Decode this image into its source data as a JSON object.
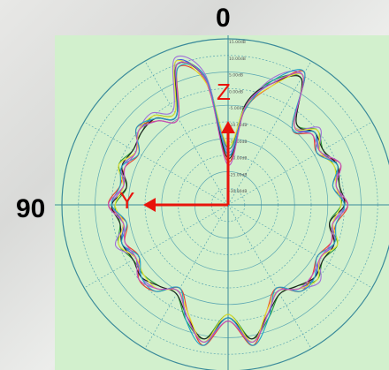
{
  "chart_data": {
    "type": "polar-line",
    "angle_labels": {
      "top": "0",
      "left": "90"
    },
    "radial_tick_labels": [
      "15.00dB",
      "10.00dB",
      "5.00dB",
      "0.00dB",
      "-5.00dB",
      "-10.00dB",
      "-15.00dB",
      "-20.00dB",
      "-25.00dB",
      "-30.00dB"
    ],
    "rlim": [
      -35,
      15
    ],
    "grid": true,
    "axes_overlay": {
      "z_label": "Z",
      "y_label": "Y",
      "color": "#e8140c"
    },
    "series_colors": [
      "#3d5bd6",
      "#2a9a3a",
      "#e8402a",
      "#a070d8",
      "#202020",
      "#e8e030",
      "#20a0c8",
      "#c050c0"
    ],
    "angles_deg": [
      0,
      10,
      20,
      30,
      40,
      50,
      60,
      70,
      80,
      90,
      100,
      110,
      120,
      130,
      140,
      150,
      160,
      170,
      180,
      190,
      200,
      210,
      220,
      230,
      240,
      250,
      260,
      270,
      280,
      290,
      300,
      310,
      320,
      330,
      340,
      350
    ],
    "series": [
      {
        "values": [
          -20,
          3,
          11,
          -4,
          -1,
          0,
          -3,
          -1,
          -3,
          0,
          -3,
          -1,
          -3,
          -1,
          -2,
          -5,
          1,
          7,
          -1,
          7,
          0,
          -5,
          -2,
          -1,
          -3,
          -1,
          -3,
          0,
          -2,
          0,
          -3,
          -1,
          -4,
          10,
          4,
          -5
        ]
      },
      {
        "values": [
          -18,
          4,
          10,
          -3,
          0,
          -1,
          -2,
          0,
          -4,
          -1,
          -2,
          0,
          -2,
          -2,
          -3,
          -4,
          2,
          6,
          -2,
          6,
          1,
          -4,
          -3,
          0,
          -2,
          0,
          -4,
          -1,
          -1,
          -1,
          -2,
          0,
          -3,
          9,
          5,
          -4
        ]
      },
      {
        "values": [
          -22,
          2,
          9,
          -5,
          -2,
          1,
          -4,
          -2,
          -2,
          1,
          -4,
          -2,
          -4,
          0,
          -1,
          -6,
          0,
          8,
          0,
          8,
          -1,
          -6,
          -1,
          -2,
          -4,
          -2,
          -2,
          1,
          -3,
          1,
          -4,
          -2,
          -5,
          11,
          3,
          -6
        ]
      },
      {
        "values": [
          -19,
          5,
          12,
          -2,
          1,
          0,
          -3,
          -1,
          -3,
          0,
          -3,
          1,
          -3,
          -1,
          -2,
          -5,
          1,
          7,
          -1,
          7,
          0,
          -5,
          -2,
          1,
          -3,
          -1,
          -3,
          0,
          -2,
          0,
          -3,
          1,
          -4,
          10,
          6,
          -5
        ]
      },
      {
        "values": [
          -21,
          3,
          10,
          -4,
          -1,
          -1,
          -2,
          -1,
          -4,
          0,
          -2,
          -1,
          -2,
          -1,
          -3,
          -4,
          1,
          6,
          -1,
          6,
          0,
          -4,
          -3,
          -1,
          -2,
          -1,
          -4,
          0,
          -1,
          0,
          -2,
          -1,
          -3,
          9,
          4,
          -4
        ]
      },
      {
        "values": [
          -17,
          2,
          11,
          -3,
          0,
          0,
          -3,
          0,
          -3,
          -1,
          -3,
          0,
          -3,
          -2,
          -2,
          -5,
          0,
          7,
          -2,
          7,
          -1,
          -5,
          -2,
          0,
          -3,
          0,
          -3,
          -1,
          -2,
          -1,
          -3,
          0,
          -4,
          10,
          3,
          -5
        ]
      },
      {
        "values": [
          -20,
          4,
          9,
          -4,
          -1,
          1,
          -4,
          -1,
          -2,
          0,
          -4,
          -1,
          -4,
          -1,
          -1,
          -6,
          2,
          8,
          -1,
          8,
          1,
          -6,
          -1,
          -1,
          -4,
          -1,
          -2,
          0,
          -3,
          0,
          -4,
          -1,
          -5,
          11,
          5,
          -6
        ]
      },
      {
        "values": [
          -23,
          3,
          10,
          -5,
          -2,
          0,
          -3,
          -2,
          -3,
          1,
          -3,
          -2,
          -3,
          0,
          -2,
          -5,
          1,
          7,
          0,
          7,
          0,
          -5,
          -2,
          -2,
          -3,
          -2,
          -3,
          1,
          -2,
          1,
          -3,
          -2,
          -4,
          10,
          4,
          -5
        ]
      }
    ]
  }
}
